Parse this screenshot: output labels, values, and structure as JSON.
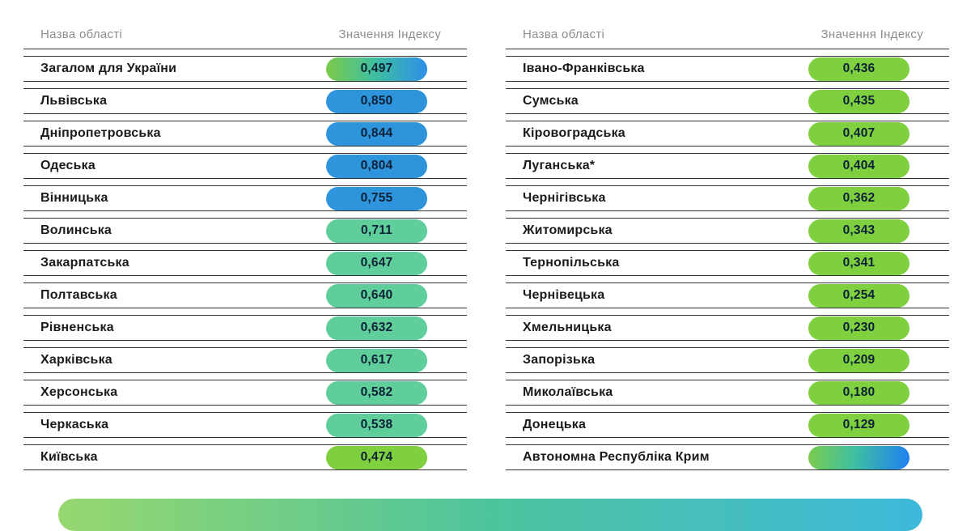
{
  "header": {
    "region_col": "Назва області",
    "value_col": "Значення Індексу"
  },
  "colors": {
    "pill_blue": "#2E94DC",
    "pill_mint": "#5FCE9B",
    "pill_green": "#7ED03E",
    "gradient_green": "#7BCB4B",
    "gradient_teal": "#3FBFA0",
    "gradient_blue": "#2E8FE8",
    "crimea_blue": "#1F80F2",
    "row_line": "#333333",
    "header_text": "#8D8D8D",
    "label_text": "#1B1B1D",
    "pill_text": "#0D2136",
    "bar_left": "#96D76F",
    "bar_mid": "#4EC49D",
    "bar_right": "#3EB8DA"
  },
  "chart_data": {
    "type": "table",
    "columns": [
      "Назва області",
      "Значення Індексу"
    ],
    "value_range": [
      0,
      1
    ],
    "tables": [
      {
        "rows": [
          {
            "region": "Загалом для України",
            "value": "0,497",
            "value_num": 0.497,
            "style": "gradient"
          },
          {
            "region": "Львівська",
            "value": "0,850",
            "value_num": 0.85,
            "style": "blue"
          },
          {
            "region": "Дніпропетровська",
            "value": "0,844",
            "value_num": 0.844,
            "style": "blue"
          },
          {
            "region": "Одеська",
            "value": "0,804",
            "value_num": 0.804,
            "style": "blue"
          },
          {
            "region": "Вінницька",
            "value": "0,755",
            "value_num": 0.755,
            "style": "blue"
          },
          {
            "region": "Волинська",
            "value": "0,711",
            "value_num": 0.711,
            "style": "mint"
          },
          {
            "region": "Закарпатська",
            "value": "0,647",
            "value_num": 0.647,
            "style": "mint"
          },
          {
            "region": "Полтавська",
            "value": "0,640",
            "value_num": 0.64,
            "style": "mint"
          },
          {
            "region": "Рівненська",
            "value": "0,632",
            "value_num": 0.632,
            "style": "mint"
          },
          {
            "region": "Харківська",
            "value": "0,617",
            "value_num": 0.617,
            "style": "mint"
          },
          {
            "region": "Херсонська",
            "value": "0,582",
            "value_num": 0.582,
            "style": "mint"
          },
          {
            "region": "Черкаська",
            "value": "0,538",
            "value_num": 0.538,
            "style": "mint"
          },
          {
            "region": "Київська",
            "value": "0,474",
            "value_num": 0.474,
            "style": "green"
          }
        ]
      },
      {
        "rows": [
          {
            "region": "Івано-Франківська",
            "value": "0,436",
            "value_num": 0.436,
            "style": "green"
          },
          {
            "region": "Сумська",
            "value": "0,435",
            "value_num": 0.435,
            "style": "green"
          },
          {
            "region": "Кіровоградська",
            "value": "0,407",
            "value_num": 0.407,
            "style": "green"
          },
          {
            "region": "Луганська*",
            "value": "0,404",
            "value_num": 0.404,
            "style": "green"
          },
          {
            "region": "Чернігівська",
            "value": "0,362",
            "value_num": 0.362,
            "style": "green"
          },
          {
            "region": "Житомирська",
            "value": "0,343",
            "value_num": 0.343,
            "style": "green"
          },
          {
            "region": "Тернопільська",
            "value": "0,341",
            "value_num": 0.341,
            "style": "green"
          },
          {
            "region": "Чернівецька",
            "value": "0,254",
            "value_num": 0.254,
            "style": "green"
          },
          {
            "region": "Хмельницька",
            "value": "0,230",
            "value_num": 0.23,
            "style": "green"
          },
          {
            "region": "Запорізька",
            "value": "0,209",
            "value_num": 0.209,
            "style": "green"
          },
          {
            "region": "Миколаївська",
            "value": "0,180",
            "value_num": 0.18,
            "style": "green"
          },
          {
            "region": "Донецька",
            "value": "0,129",
            "value_num": 0.129,
            "style": "green"
          },
          {
            "region": "Автономна Республіка Крим",
            "value": "",
            "value_num": null,
            "style": "gradient-crimea"
          }
        ]
      }
    ]
  }
}
